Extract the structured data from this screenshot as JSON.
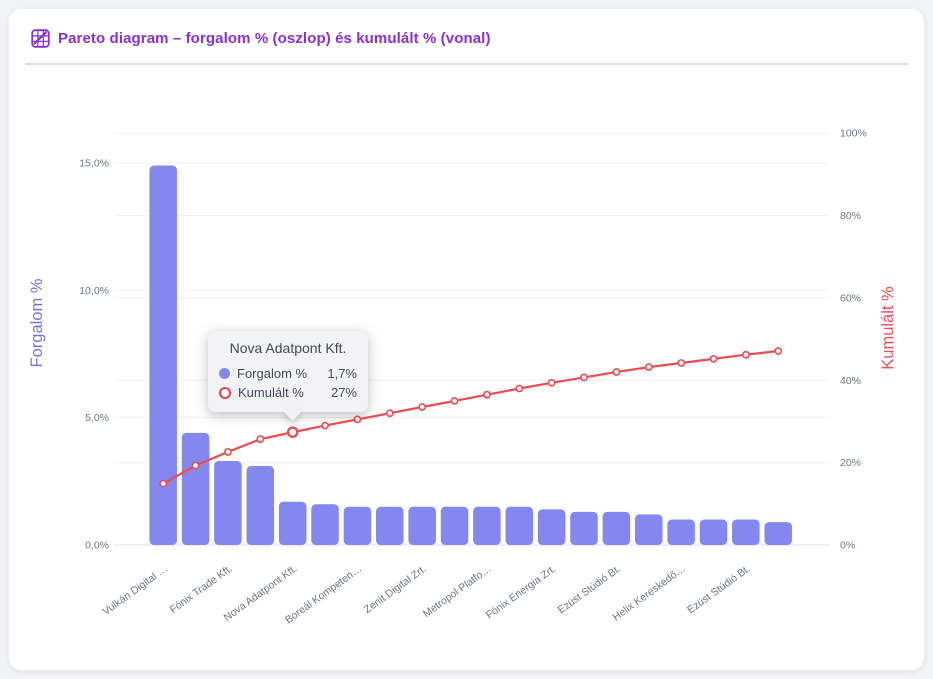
{
  "header": {
    "title": "Pareto diagram – forgalom % (oszlop) és kumulált % (vonal)",
    "icon": "pareto-grid-icon"
  },
  "colors": {
    "page_bg": "#f2f3f6",
    "card_bg": "#ffffff",
    "title_text": "#8b2fd9",
    "divider": "#e7d9f6",
    "bar": "#8487f0",
    "line": "#ef4b52",
    "grid": "#f1f1f4",
    "axis_line": "#e4e6eb",
    "tick_text": "#6e7480",
    "left_axis_title": "#7174e6",
    "right_axis_title": "#ef5156",
    "tooltip_bg": "#f3f3f5",
    "tooltip_text": "#414958"
  },
  "chart_data": {
    "type": "pareto (bar + line)",
    "categories": [
      "Vulkán Digital …",
      "",
      "Fónix Trade Kft.",
      "",
      "Nova Adatpont Kft.",
      "",
      "Boreál Kompeten…",
      "",
      "Zenit Digital Zrt.",
      "",
      "Metropol Platfo…",
      "",
      "Fónix Energia Zrt.",
      "",
      "Ezüst Stúdió Bt.",
      "",
      "Helix Kereskedő…",
      "",
      "Ezüst Stúdió Bt.",
      ""
    ],
    "series": [
      {
        "name": "Forgalom %",
        "type": "bar",
        "axis": "left",
        "values": [
          14.9,
          4.4,
          3.3,
          3.1,
          1.7,
          1.6,
          1.5,
          1.5,
          1.5,
          1.5,
          1.5,
          1.5,
          1.4,
          1.3,
          1.3,
          1.2,
          1.0,
          1.0,
          1.0,
          0.9
        ]
      },
      {
        "name": "Kumulált %",
        "type": "line",
        "axis": "right",
        "values": [
          14.9,
          19.3,
          22.6,
          25.7,
          27.4,
          29.0,
          30.5,
          32.0,
          33.5,
          35.0,
          36.5,
          38.0,
          39.4,
          40.7,
          42.0,
          43.2,
          44.2,
          45.2,
          46.2,
          47.1
        ]
      }
    ],
    "left_axis": {
      "title": "Forgalom %",
      "ticks": [
        {
          "value": 0,
          "label": "0,0%"
        },
        {
          "value": 5,
          "label": "5,0%"
        },
        {
          "value": 10,
          "label": "10,0%"
        },
        {
          "value": 15,
          "label": "15,0%"
        }
      ],
      "range": [
        0,
        16.25
      ]
    },
    "right_axis": {
      "title": "Kumulált %",
      "ticks": [
        {
          "value": 0,
          "label": "0%"
        },
        {
          "value": 20,
          "label": "20%"
        },
        {
          "value": 40,
          "label": "40%"
        },
        {
          "value": 60,
          "label": "60%"
        },
        {
          "value": 80,
          "label": "80%"
        },
        {
          "value": 100,
          "label": "100%"
        }
      ],
      "range": [
        0,
        100
      ]
    },
    "grid": "horizontal only",
    "highlight_index": 4
  },
  "tooltip": {
    "title": "Nova Adatpont Kft.",
    "rows": [
      {
        "label": "Forgalom %",
        "value": "1,7%",
        "marker": "filled-circle",
        "marker_color": "#8487f0"
      },
      {
        "label": "Kumulált %",
        "value": "27%",
        "marker": "ring",
        "marker_color": "#e8404a"
      }
    ]
  }
}
